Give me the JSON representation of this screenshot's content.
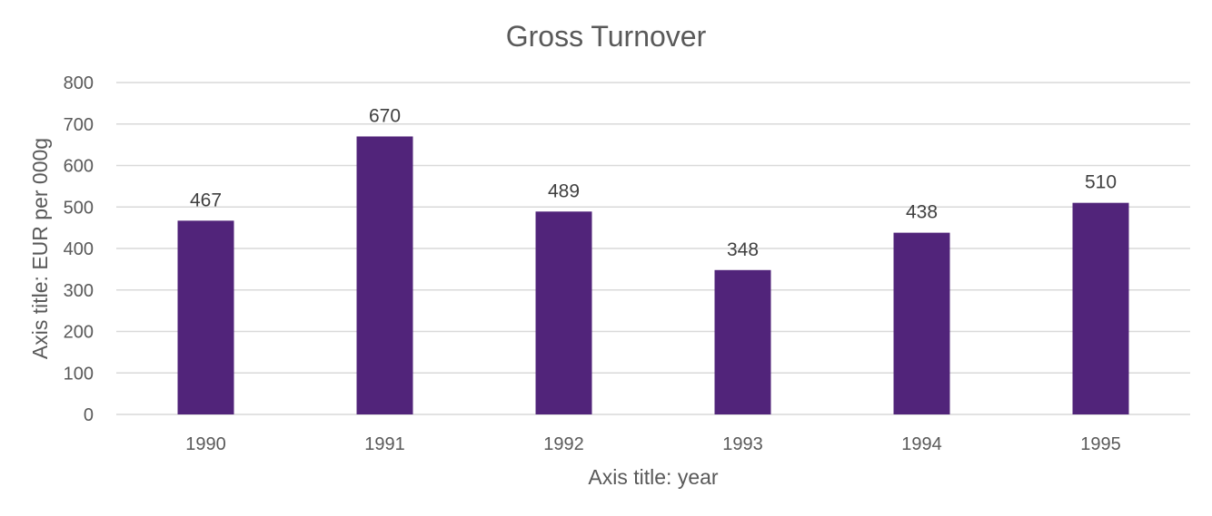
{
  "chart_data": {
    "type": "bar",
    "title": "Gross Turnover",
    "xlabel": "Axis title: year",
    "ylabel": "Axis title: EUR per 000g",
    "categories": [
      "1990",
      "1991",
      "1992",
      "1993",
      "1994",
      "1995"
    ],
    "values": [
      467,
      670,
      489,
      348,
      438,
      510
    ],
    "data_labels": [
      "467",
      "670",
      "489",
      "348",
      "438",
      "510"
    ],
    "ylim": [
      0,
      800
    ],
    "yticks": [
      "0",
      "100",
      "200",
      "300",
      "400",
      "500",
      "600",
      "700",
      "800"
    ],
    "grid": true,
    "legend": "none",
    "bar_color": "#51247a"
  }
}
